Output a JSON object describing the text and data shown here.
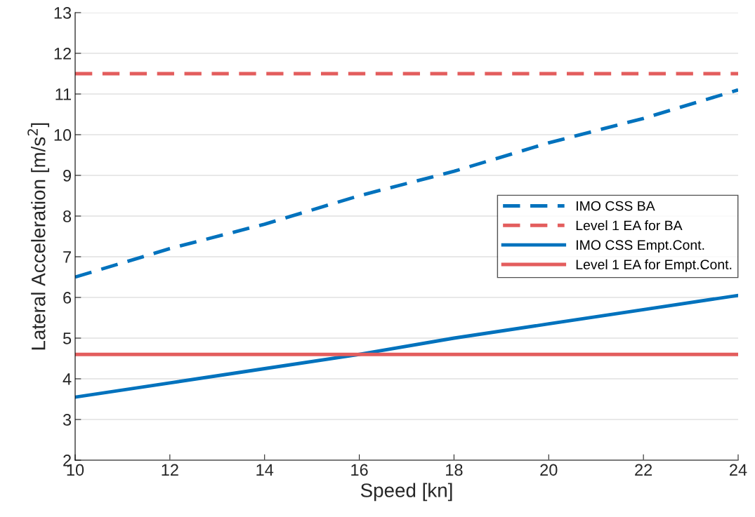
{
  "chart_data": {
    "type": "line",
    "xlabel": "Speed [kn]",
    "ylabel": "Lateral Acceleration [m/s$^{2}$]",
    "xlim": [
      10,
      24
    ],
    "xticks": [
      10,
      12,
      14,
      16,
      18,
      20,
      22,
      24
    ],
    "ylim": [
      2,
      13
    ],
    "yticks": [
      2,
      3,
      4,
      5,
      6,
      7,
      8,
      9,
      10,
      11,
      12,
      13
    ],
    "grid": "y",
    "legend": "right",
    "marker": "none",
    "x": [
      10,
      12,
      14,
      16,
      18,
      20,
      22,
      24
    ],
    "series": [
      {
        "name": "IMO CSS BA",
        "color": "#0072bd",
        "line_style": "dashed",
        "values": [
          6.5,
          7.2,
          7.8,
          8.5,
          9.1,
          9.8,
          10.4,
          11.1
        ]
      },
      {
        "name": "Level 1 EA for BA",
        "color": "#e35d5d",
        "line_style": "dashed",
        "values": [
          11.5,
          11.5,
          11.5,
          11.5,
          11.5,
          11.5,
          11.5,
          11.5
        ]
      },
      {
        "name": "IMO CSS Empt.Cont.",
        "color": "#0072bd",
        "line_style": "solid",
        "values": [
          3.55,
          3.9,
          4.25,
          4.6,
          5.0,
          5.35,
          5.7,
          6.05
        ]
      },
      {
        "name": "Level 1 EA for Empt.Cont.",
        "color": "#e35d5d",
        "line_style": "solid",
        "values": [
          4.6,
          4.6,
          4.6,
          4.6,
          4.6,
          4.6,
          4.6,
          4.6
        ]
      }
    ]
  }
}
